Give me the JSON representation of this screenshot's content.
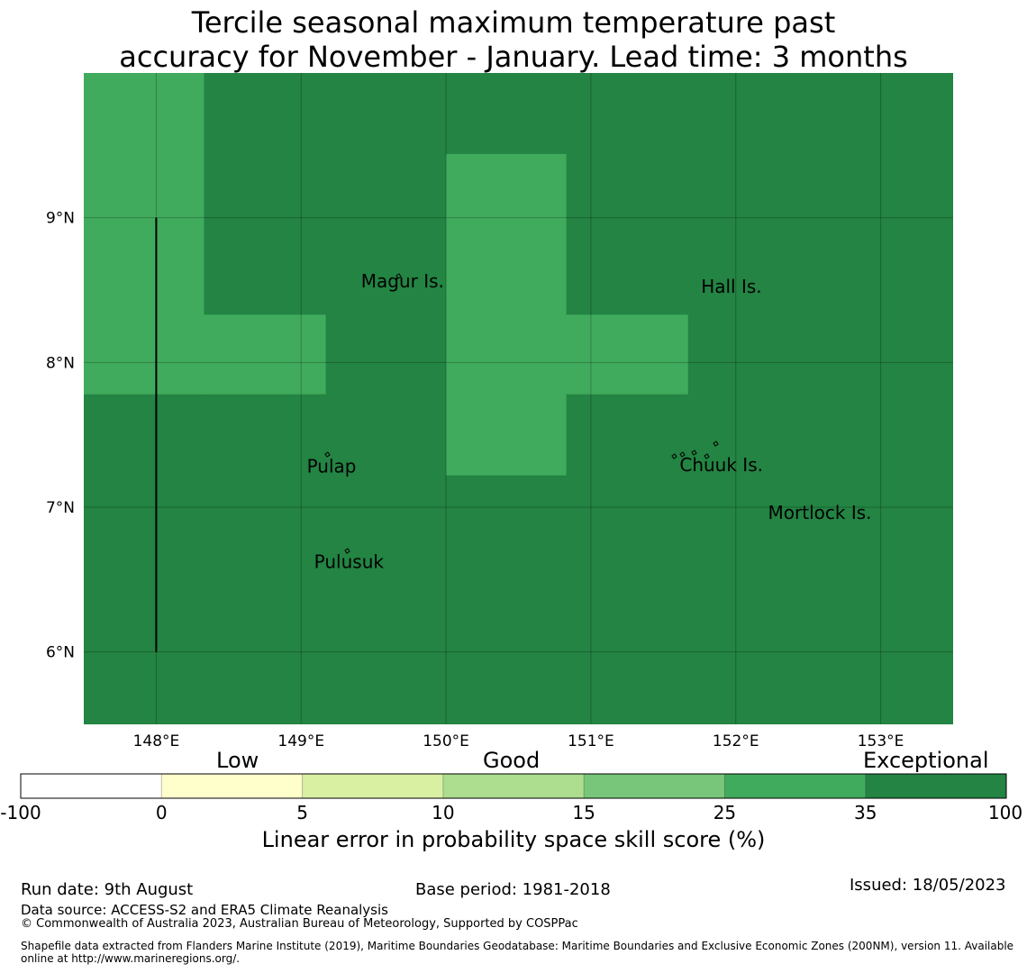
{
  "title": {
    "line1": "Tercile seasonal maximum temperature past",
    "line2": "accuracy for November - January. Lead time: 3 months"
  },
  "map": {
    "lon_range": [
      147.5,
      153.5
    ],
    "lat_range": [
      5.5,
      10.0
    ],
    "x_ticks": [
      {
        "lon": 148,
        "label": "148°E"
      },
      {
        "lon": 149,
        "label": "149°E"
      },
      {
        "lon": 150,
        "label": "150°E"
      },
      {
        "lon": 151,
        "label": "151°E"
      },
      {
        "lon": 152,
        "label": "152°E"
      },
      {
        "lon": 153,
        "label": "153°E"
      }
    ],
    "y_ticks": [
      {
        "lat": 9,
        "label": "9°N"
      },
      {
        "lat": 8,
        "label": "8°N"
      },
      {
        "lat": 7,
        "label": "7°N"
      },
      {
        "lat": 6,
        "label": "6°N"
      }
    ],
    "background_color": "#238443",
    "cell_category_color": "#41ab5d",
    "cells_25_35": [
      {
        "lon_min": 147.5,
        "lon_max": 148.33,
        "lat_min": 7.78,
        "lat_max": 10.0
      },
      {
        "lon_min": 148.33,
        "lon_max": 149.17,
        "lat_min": 7.78,
        "lat_max": 8.33
      },
      {
        "lon_min": 150.0,
        "lon_max": 150.83,
        "lat_min": 7.22,
        "lat_max": 9.44
      },
      {
        "lon_min": 150.83,
        "lon_max": 151.67,
        "lat_min": 7.78,
        "lat_max": 8.33
      }
    ],
    "boundary_line": {
      "lon": 148.0,
      "lat_min": 6.0,
      "lat_max": 9.0
    },
    "places": [
      {
        "name": "Magur Is.",
        "lon": 149.7,
        "lat": 8.52
      },
      {
        "name": "Hall Is.",
        "lon": 151.97,
        "lat": 8.48
      },
      {
        "name": "Pulap",
        "lon": 149.21,
        "lat": 7.24
      },
      {
        "name": "Chuuk Is.",
        "lon": 151.9,
        "lat": 7.25
      },
      {
        "name": "Mortlock Is.",
        "lon": 152.58,
        "lat": 6.92
      },
      {
        "name": "Pulusuk",
        "lon": 149.33,
        "lat": 6.58
      }
    ]
  },
  "colorbar": {
    "categories": [
      "Low",
      "Good",
      "Exceptional"
    ],
    "tick_labels": [
      "-100",
      "0",
      "5",
      "10",
      "15",
      "25",
      "35",
      "100"
    ],
    "colors": [
      "#ffffff",
      "#ffffcc",
      "#d9f0a3",
      "#addd8e",
      "#78c679",
      "#41ab5d",
      "#238443"
    ],
    "caption": "Linear error in probability space skill score (%)"
  },
  "footer": {
    "run_date": "Run date: 9th August",
    "base_period": "Base period: 1981-2018",
    "issued": "Issued: 18/05/2023",
    "data_source": "Data source: ACCESS-S2 and ERA5 Climate Reanalysis",
    "copyright": "© Commonwealth of Australia 2023, Australian Bureau of Meteorology, Supported by COSPPac",
    "shapefile_line1": "Shapefile data extracted from Flanders Marine Institute (2019), Maritime Boundaries Geodatabase: Maritime Boundaries and Exclusive Economic Zones (200NM), version 11. Available",
    "shapefile_line2": "online at http://www.marineregions.org/."
  }
}
